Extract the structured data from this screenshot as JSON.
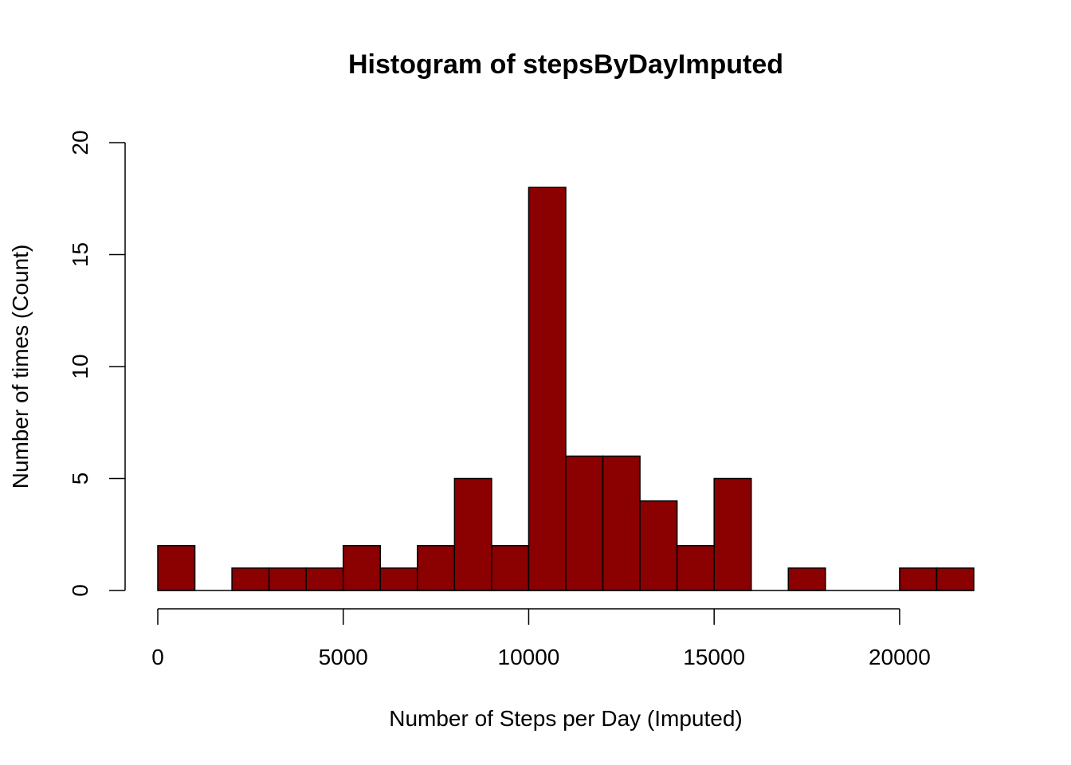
{
  "chart_data": {
    "type": "bar",
    "title": "Histogram of stepsByDayImputed",
    "xlabel": "Number of Steps per Day (Imputed)",
    "ylabel": "Number of times (Count)",
    "bin_width": 1000,
    "bin_starts": [
      0,
      1000,
      2000,
      3000,
      4000,
      5000,
      6000,
      7000,
      8000,
      9000,
      10000,
      11000,
      12000,
      13000,
      14000,
      15000,
      16000,
      17000,
      18000,
      19000,
      20000,
      21000
    ],
    "values": [
      2,
      0,
      1,
      1,
      1,
      2,
      1,
      2,
      5,
      2,
      18,
      6,
      6,
      4,
      2,
      5,
      0,
      1,
      0,
      0,
      1,
      1
    ],
    "xlim": [
      0,
      22000
    ],
    "ylim": [
      0,
      20
    ],
    "x_ticks": [
      0,
      5000,
      10000,
      15000,
      20000
    ],
    "y_ticks": [
      0,
      5,
      10,
      15,
      20
    ],
    "bar_color": "#8B0000",
    "grid": false
  }
}
